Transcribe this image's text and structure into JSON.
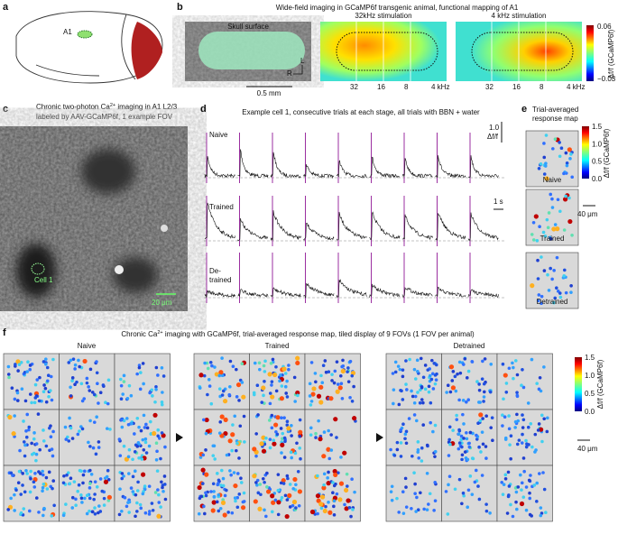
{
  "panel_a": {
    "letter": "a",
    "region": "A1"
  },
  "panel_b": {
    "letter": "b",
    "title": "Wide-field imaging in GCaMP6f transgenic animal, functional mapping of A1",
    "images": [
      "Skull surface",
      "32kHz  stimulation",
      "4 kHz  stimulation"
    ],
    "scale_bar": "0.5 mm",
    "orientation": [
      "L",
      "R"
    ],
    "freq_labels": [
      "32",
      "16",
      "8",
      "4 kHz"
    ],
    "colorbar": {
      "max": "0.06",
      "min": "−0.03",
      "label": "Δf/f (GCaMP6f)"
    }
  },
  "panel_c": {
    "letter": "c",
    "title": [
      "Chronic two-photon Ca",
      "2+",
      " imaging in A1 L2/3"
    ],
    "subtitle": "labeled by AAV-GCaMP6f, 1 example FOV",
    "cell": "Cell 1",
    "scale_bar": "20 μm"
  },
  "panel_d": {
    "letter": "d",
    "title": "Example cell 1, consecutive trials at each stage, all trials with BBN + water",
    "scale_y": "1.0",
    "scale_y_unit": "Δf/f",
    "scale_x": "1 s",
    "rows": [
      "Naive",
      "Trained",
      "De-",
      "trained"
    ]
  },
  "panel_e": {
    "letter": "e",
    "title": [
      "Trial-averaged",
      "response map"
    ],
    "colorbar": {
      "ticks": [
        "1.5",
        "1.0",
        "0.5",
        "0.0"
      ],
      "label": "Δf/f (GCaMP6f)"
    },
    "maps": [
      "Naive",
      "Trained",
      "Detrained"
    ],
    "scale_bar": "40 μm"
  },
  "panel_f": {
    "letter": "f",
    "title": [
      "Chronic Ca",
      "2+",
      " imaging with GCaMP6f, trial-averaged response map, tiled display of 9 FOVs (1 FOV per animal)"
    ],
    "groups": [
      "Naive",
      "Trained",
      "Detrained"
    ],
    "colorbar": {
      "ticks": [
        "1.5",
        "1.0",
        "0.5",
        "0.0"
      ],
      "label": "Δf/f (GCaMP6f)"
    },
    "scale_bar": "40 μm"
  }
}
